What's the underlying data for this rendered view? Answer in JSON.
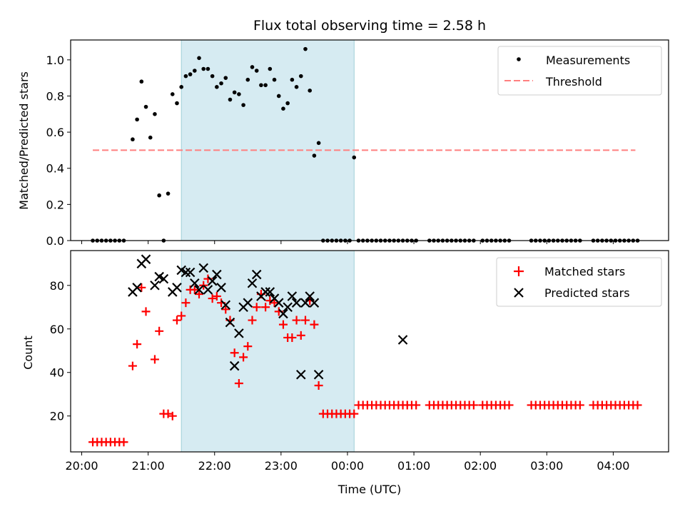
{
  "chart_data": {
    "type": "scatter",
    "title": "Flux total observing time = 2.58 h",
    "xlabel": "Time (UTC)",
    "x_ticks": [
      "20:00",
      "21:00",
      "22:00",
      "23:00",
      "00:00",
      "01:00",
      "02:00",
      "03:00",
      "04:00"
    ],
    "xlim": [
      "19:50",
      "04:50"
    ],
    "shaded_region": {
      "start": "21:30",
      "end": "00:06",
      "color": "#add8e6"
    },
    "top": {
      "ylabel": "Matched/Predicted stars",
      "ylim": [
        0,
        1.11
      ],
      "y_ticks": [
        "0.0",
        "0.2",
        "0.4",
        "0.6",
        "0.8",
        "1.0"
      ],
      "y_tick_values": [
        0,
        0.2,
        0.4,
        0.6,
        0.8,
        1.0
      ],
      "legend": {
        "position": "upper right",
        "entries": [
          "Measurements",
          "Threshold"
        ]
      },
      "threshold": {
        "name": "Threshold",
        "value": 0.5,
        "x_start": "20:10",
        "x_end": "04:20",
        "color": "#ff7f7f"
      },
      "measurements": {
        "name": "Measurements",
        "x": [
          "20:10",
          "20:14",
          "20:18",
          "20:22",
          "20:26",
          "20:30",
          "20:34",
          "20:38",
          "20:46",
          "20:50",
          "20:54",
          "20:58",
          "21:02",
          "21:06",
          "21:10",
          "21:14",
          "21:18",
          "21:22",
          "21:26",
          "21:30",
          "21:34",
          "21:38",
          "21:42",
          "21:46",
          "21:50",
          "21:54",
          "21:58",
          "22:02",
          "22:06",
          "22:10",
          "22:14",
          "22:18",
          "22:22",
          "22:26",
          "22:30",
          "22:34",
          "22:38",
          "22:42",
          "22:46",
          "22:50",
          "22:54",
          "22:58",
          "23:02",
          "23:06",
          "23:10",
          "23:14",
          "23:18",
          "23:22",
          "23:26",
          "23:30",
          "23:34",
          "23:38",
          "23:42",
          "23:46",
          "23:50",
          "23:54",
          "23:58",
          "00:02",
          "00:06",
          "00:10",
          "00:14",
          "00:18",
          "00:22",
          "00:26",
          "00:30",
          "00:34",
          "00:38",
          "00:42",
          "00:46",
          "00:50",
          "00:54",
          "00:58",
          "01:02",
          "01:14",
          "01:18",
          "01:22",
          "01:26",
          "01:30",
          "01:34",
          "01:38",
          "01:42",
          "01:46",
          "01:50",
          "01:54",
          "02:02",
          "02:06",
          "02:10",
          "02:14",
          "02:18",
          "02:22",
          "02:26",
          "02:46",
          "02:50",
          "02:54",
          "02:58",
          "03:02",
          "03:06",
          "03:10",
          "03:14",
          "03:18",
          "03:22",
          "03:26",
          "03:30",
          "03:42",
          "03:46",
          "03:50",
          "03:54",
          "03:58",
          "04:02",
          "04:06",
          "04:10",
          "04:14",
          "04:18",
          "04:22"
        ],
        "y": [
          0,
          0,
          0,
          0,
          0,
          0,
          0,
          0,
          0.56,
          0.67,
          0.88,
          0.74,
          0.57,
          0.7,
          0.25,
          0,
          0.26,
          0.81,
          0.76,
          0.85,
          0.91,
          0.92,
          0.94,
          1.01,
          0.95,
          0.95,
          0.91,
          0.85,
          0.87,
          0.9,
          0.78,
          0.82,
          0.81,
          0.75,
          0.89,
          0.96,
          0.94,
          0.86,
          0.86,
          0.95,
          0.89,
          0.8,
          0.73,
          0.76,
          0.89,
          0.85,
          0.91,
          1.06,
          0.83,
          0.47,
          0.54,
          0,
          0,
          0,
          0,
          0,
          0,
          0,
          0.46,
          0,
          0,
          0,
          0,
          0,
          0,
          0,
          0,
          0,
          0,
          0,
          0,
          0,
          0,
          0,
          0,
          0,
          0,
          0,
          0,
          0,
          0,
          0,
          0,
          0,
          0,
          0,
          0,
          0,
          0,
          0,
          0,
          0,
          0,
          0,
          0,
          0,
          0,
          0,
          0,
          0,
          0,
          0,
          0,
          0,
          0,
          0,
          0,
          0,
          0,
          0,
          0,
          0,
          0,
          0
        ]
      }
    },
    "bottom": {
      "ylabel": "Count",
      "ylim": [
        3.5,
        96
      ],
      "y_ticks": [
        "20",
        "40",
        "60",
        "80"
      ],
      "y_tick_values": [
        20,
        40,
        60,
        80
      ],
      "legend": {
        "position": "upper right",
        "entries": [
          "Matched stars",
          "Predicted stars"
        ]
      },
      "matched": {
        "name": "Matched stars",
        "color": "#ff0000",
        "x": [
          "20:10",
          "20:14",
          "20:18",
          "20:22",
          "20:26",
          "20:30",
          "20:34",
          "20:38",
          "20:46",
          "20:50",
          "20:54",
          "20:58",
          "21:06",
          "21:10",
          "21:14",
          "21:18",
          "21:22",
          "21:26",
          "21:30",
          "21:34",
          "21:38",
          "21:42",
          "21:46",
          "21:50",
          "21:54",
          "21:58",
          "22:02",
          "22:06",
          "22:10",
          "22:14",
          "22:18",
          "22:22",
          "22:26",
          "22:30",
          "22:34",
          "22:38",
          "22:42",
          "22:46",
          "22:50",
          "22:54",
          "22:58",
          "23:02",
          "23:06",
          "23:10",
          "23:14",
          "23:18",
          "23:22",
          "23:26",
          "23:30",
          "23:34",
          "23:38",
          "23:42",
          "23:46",
          "23:50",
          "23:54",
          "23:58",
          "00:02",
          "00:06",
          "00:10",
          "00:14",
          "00:18",
          "00:22",
          "00:26",
          "00:30",
          "00:34",
          "00:38",
          "00:42",
          "00:46",
          "00:50",
          "00:54",
          "00:58",
          "01:02",
          "01:14",
          "01:18",
          "01:22",
          "01:26",
          "01:30",
          "01:34",
          "01:38",
          "01:42",
          "01:46",
          "01:50",
          "01:54",
          "02:02",
          "02:06",
          "02:10",
          "02:14",
          "02:18",
          "02:22",
          "02:26",
          "02:46",
          "02:50",
          "02:54",
          "02:58",
          "03:02",
          "03:06",
          "03:10",
          "03:14",
          "03:18",
          "03:22",
          "03:26",
          "03:30",
          "03:42",
          "03:46",
          "03:50",
          "03:54",
          "03:58",
          "04:02",
          "04:06",
          "04:10",
          "04:14",
          "04:18",
          "04:22"
        ],
        "y": [
          8,
          8,
          8,
          8,
          8,
          8,
          8,
          8,
          43,
          53,
          79,
          68,
          46,
          59,
          21,
          21,
          20,
          64,
          66,
          72,
          78,
          78,
          76,
          80,
          83,
          74,
          75,
          72,
          69,
          64,
          49,
          35,
          47,
          52,
          64,
          70,
          76,
          70,
          73,
          72,
          68,
          62,
          56,
          56,
          64,
          57,
          64,
          73,
          62,
          34,
          21,
          21,
          21,
          21,
          21,
          21,
          21,
          21,
          25,
          25,
          25,
          25,
          25,
          25,
          25,
          25,
          25,
          25,
          25,
          25,
          25,
          25,
          25,
          25,
          25,
          25,
          25,
          25,
          25,
          25,
          25,
          25,
          25,
          25,
          25,
          25,
          25,
          25,
          25,
          25,
          25,
          25,
          25,
          25,
          25,
          25,
          25,
          25,
          25,
          25,
          25,
          25,
          25,
          25,
          25,
          25,
          25,
          25,
          25,
          25,
          25,
          25,
          25
        ]
      },
      "predicted": {
        "name": "Predicted stars",
        "color": "#000000",
        "x": [
          "20:46",
          "20:50",
          "20:54",
          "20:58",
          "21:06",
          "21:10",
          "21:14",
          "21:22",
          "21:26",
          "21:30",
          "21:34",
          "21:38",
          "21:42",
          "21:46",
          "21:50",
          "21:54",
          "21:58",
          "22:02",
          "22:06",
          "22:10",
          "22:14",
          "22:18",
          "22:22",
          "22:26",
          "22:30",
          "22:34",
          "22:38",
          "22:42",
          "22:46",
          "22:50",
          "22:54",
          "22:58",
          "23:02",
          "23:06",
          "23:10",
          "23:14",
          "23:18",
          "23:22",
          "23:26",
          "23:30",
          "23:34",
          "00:50"
        ],
        "y": [
          77,
          79,
          90,
          92,
          80,
          84,
          83,
          77,
          79,
          87,
          86,
          86,
          81,
          78,
          88,
          78,
          82,
          85,
          79,
          71,
          63,
          43,
          58,
          70,
          72,
          81,
          85,
          75,
          77,
          77,
          74,
          72,
          67,
          70,
          75,
          72,
          39,
          72,
          75,
          72,
          39,
          55
        ]
      }
    }
  }
}
